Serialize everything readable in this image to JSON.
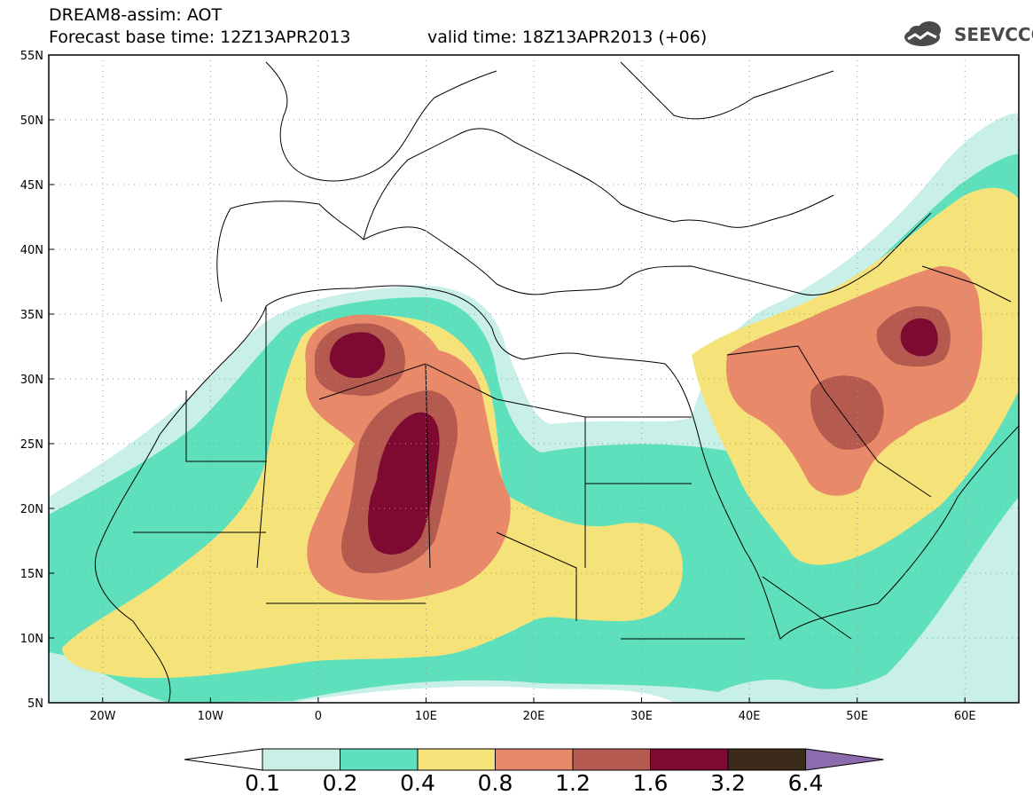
{
  "header": {
    "model_title": "DREAM8-assim: AOT",
    "base_time": "Forecast base time: 12Z13APR2013",
    "valid_time": "valid time: 18Z13APR2013 (+06)",
    "logo_text": "SEEVCCC",
    "logo_icon": "cloud-icon"
  },
  "map": {
    "lat_ticks": [
      "55N",
      "50N",
      "45N",
      "40N",
      "35N",
      "30N",
      "25N",
      "20N",
      "15N",
      "10N",
      "5N"
    ],
    "lon_ticks": [
      "20W",
      "10W",
      "0",
      "10E",
      "20E",
      "30E",
      "40E",
      "50E",
      "60E"
    ],
    "lon_range": [
      -25,
      65
    ],
    "lat_range": [
      5,
      55
    ],
    "grid": "dotted"
  },
  "colorbar": {
    "labels": [
      "0.1",
      "0.2",
      "0.4",
      "0.8",
      "1.2",
      "1.6",
      "3.2",
      "6.4"
    ],
    "colors": [
      "#c8efe8",
      "#5ee0bd",
      "#f5e37a",
      "#e8896a",
      "#b55a4f",
      "#7e0a32",
      "#3c2a1c",
      "#8c6cae"
    ],
    "map_colors": {
      "c01": "#c8efe8",
      "c02": "#5ee0bd",
      "c04": "#f5e37a",
      "c08": "#e8896a",
      "c12": "#b55a4f",
      "c16": "#7e0a32"
    }
  }
}
